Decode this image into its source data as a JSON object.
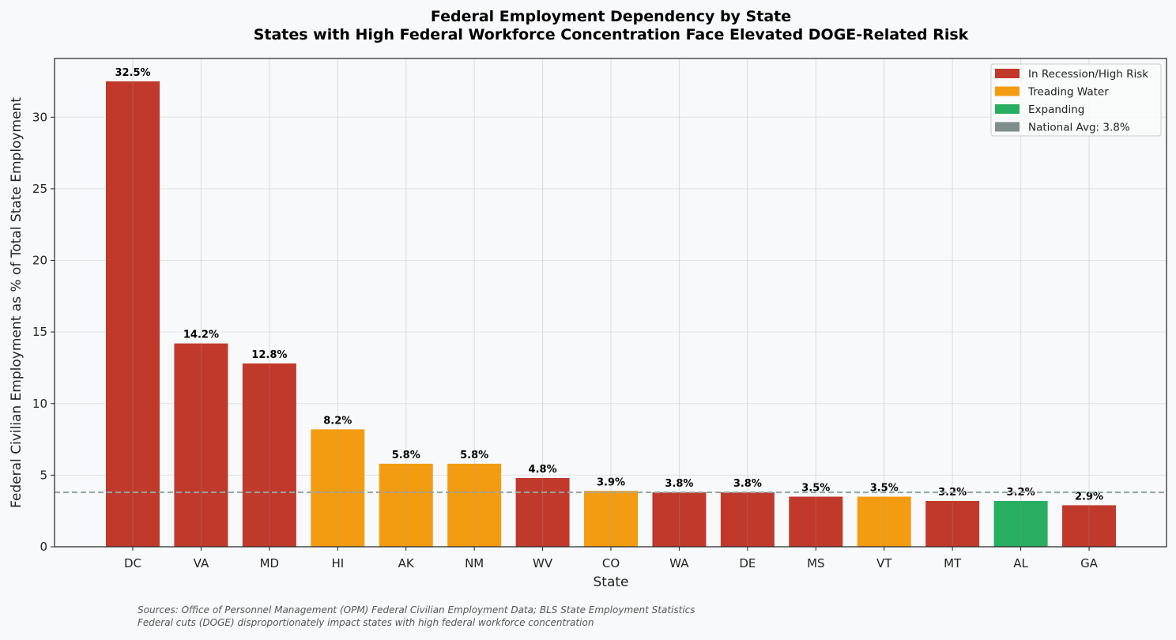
{
  "chart_data": {
    "type": "bar",
    "title": "Federal Employment Dependency by State",
    "subtitle": "States with High Federal Workforce Concentration Face Elevated DOGE-Related Risk",
    "xlabel": "State",
    "ylabel": "Federal Civilian Employment as % of Total State Employment",
    "categories": [
      "DC",
      "VA",
      "MD",
      "HI",
      "AK",
      "NM",
      "WV",
      "CO",
      "WA",
      "DE",
      "MS",
      "VT",
      "MT",
      "AL",
      "GA"
    ],
    "values": [
      32.5,
      14.2,
      12.8,
      8.2,
      5.8,
      5.8,
      4.8,
      3.9,
      3.8,
      3.8,
      3.5,
      3.5,
      3.2,
      3.2,
      2.9
    ],
    "value_labels": [
      "32.5%",
      "14.2%",
      "12.8%",
      "8.2%",
      "5.8%",
      "5.8%",
      "4.8%",
      "3.9%",
      "3.8%",
      "3.8%",
      "3.5%",
      "3.5%",
      "3.2%",
      "3.2%",
      "2.9%"
    ],
    "status": [
      "recession",
      "recession",
      "recession",
      "treading",
      "treading",
      "treading",
      "recession",
      "treading",
      "recession",
      "recession",
      "recession",
      "treading",
      "recession",
      "expanding",
      "recession"
    ],
    "ylim": [
      0,
      34.1
    ],
    "yticks": [
      0,
      5,
      10,
      15,
      20,
      25,
      30
    ],
    "grid": true,
    "reference_line": {
      "value": 3.8,
      "label": "National Avg: 3.8%",
      "style": "dashed",
      "color": "#95a5a6"
    },
    "legend": {
      "placement": "top-right",
      "entries": [
        {
          "key": "recession",
          "label": "In Recession/High Risk",
          "color": "#c0392b"
        },
        {
          "key": "treading",
          "label": "Treading Water",
          "color": "#f39c12"
        },
        {
          "key": "expanding",
          "label": "Expanding",
          "color": "#27ae60"
        },
        {
          "key": "avg",
          "label": "National Avg: 3.8%",
          "color": "#7f8c8d"
        }
      ]
    },
    "footnotes": [
      "Sources: Office of Personnel Management (OPM) Federal Civilian Employment Data; BLS State Employment Statistics",
      "Federal cuts (DOGE) disproportionately impact states with high federal workforce concentration"
    ]
  }
}
